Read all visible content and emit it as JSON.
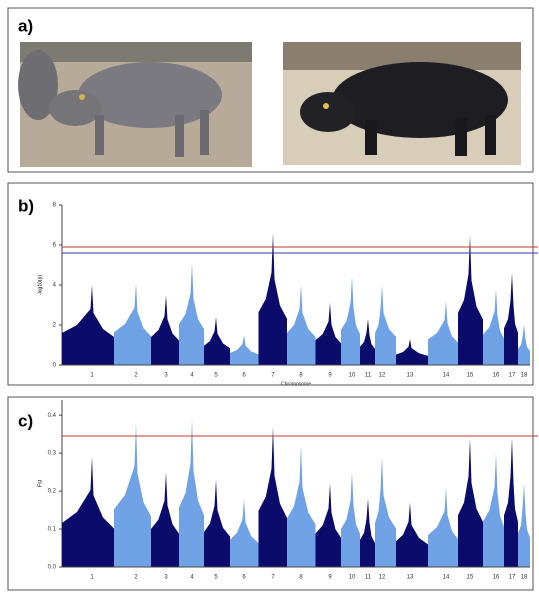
{
  "panel_labels": [
    "a)",
    "b)",
    "c)"
  ],
  "chart_data": [
    {
      "type": "manhattan",
      "y_label": "-log10(p)",
      "x_label": "Chromosome",
      "categories": [
        "1",
        "2",
        "3",
        "4",
        "5",
        "6",
        "7",
        "8",
        "9",
        "10",
        "11",
        "12",
        "13",
        "14",
        "15",
        "16",
        "17",
        "18"
      ],
      "values": [
        4.0,
        4.1,
        3.5,
        5.1,
        2.4,
        1.5,
        6.6,
        4.0,
        3.1,
        4.4,
        2.3,
        4.0,
        1.3,
        3.2,
        6.5,
        3.8,
        4.6,
        2.0
      ],
      "colors": [
        "#0b0b6b",
        "#6fa3e6"
      ],
      "thresholds": [
        {
          "value": 5.9,
          "color": "#c0392b"
        },
        {
          "value": 5.6,
          "color": "#3a3aa8"
        }
      ],
      "ylim": [
        0,
        8
      ],
      "yticks": [
        0,
        2,
        4,
        6,
        8
      ]
    },
    {
      "type": "manhattan",
      "y_label": "Fst",
      "categories": [
        "1",
        "2",
        "3",
        "4",
        "5",
        "6",
        "7",
        "8",
        "9",
        "10",
        "11",
        "12",
        "13",
        "14",
        "15",
        "16",
        "17",
        "18"
      ],
      "values": [
        0.29,
        0.38,
        0.25,
        0.39,
        0.23,
        0.18,
        0.37,
        0.32,
        0.22,
        0.25,
        0.18,
        0.29,
        0.17,
        0.21,
        0.34,
        0.3,
        0.34,
        0.22
      ],
      "colors": [
        "#0b0b6b",
        "#6fa3e6"
      ],
      "thresholds": [
        {
          "value": 0.345,
          "color": "#c0392b"
        }
      ],
      "ylim": [
        0,
        0.44
      ],
      "yticks": [
        {
          "value": 0,
          "label": "0.0"
        },
        {
          "value": 0.1,
          "label": "0.1"
        },
        {
          "value": 0.2,
          "label": "0.2"
        },
        {
          "value": 0.3,
          "label": "0.3"
        },
        {
          "value": 0.4,
          "label": "0.4"
        }
      ]
    }
  ]
}
